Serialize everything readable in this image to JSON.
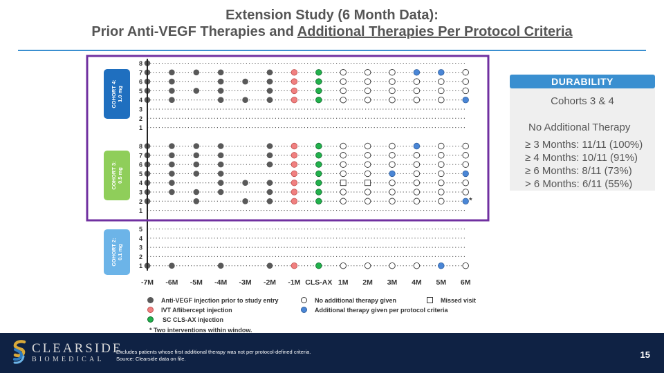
{
  "slide": {
    "title_line1": "Extension Study (6 Month Data):",
    "title_line2_prefix": "Prior Anti-VEGF Therapies and ",
    "title_line2_underlined": "Additional Therapies Per Protocol Criteria",
    "page_number": "15"
  },
  "durability": {
    "header": "DURABILITY",
    "subtitle": "Cohorts 3 & 4",
    "no_additional": "No Additional Therapy",
    "stats": [
      "≥ 3 Months: 11/11 (100%)",
      "≥ 4 Months: 10/11 (91%)",
      "≥ 6 Months: 8/11 (73%)",
      "> 6 Months: 6/11 (55%)"
    ]
  },
  "legend": {
    "prior": "Anti-VEGF injection prior to study entry",
    "ivt": "IVT Aflibercept injection",
    "scs": "SC CLS-AX injection",
    "none": "No additional therapy given",
    "additional": "Additional therapy given per protocol criteria",
    "missed": "Missed visit",
    "footnote": "* Two interventions within window."
  },
  "footer": {
    "logo_line1": "CLEARSIDE",
    "logo_line2": "BIOMEDICAL",
    "note1": "Excludes patients whose first additional therapy was not per protocol-defined criteria.",
    "note2": "Source: Clearside data on file."
  },
  "colors": {
    "prior": "#595959",
    "ivt": "#f08080",
    "scs": "#22b14c",
    "none": "#ffffff",
    "additional": "#4a86d6",
    "cohort4": "#1f6fbf",
    "cohort3": "#8fce5a",
    "cohort2": "#6cb4e8",
    "highlight_box": "#7030a0",
    "accent": "#3a8fd0"
  },
  "chart_data": {
    "type": "scatter",
    "x_labels": [
      "-7M",
      "-6M",
      "-5M",
      "-4M",
      "-3M",
      "-2M",
      "-1M",
      "CLS-AX",
      "1M",
      "2M",
      "3M",
      "4M",
      "5M",
      "6M"
    ],
    "legend_codes": {
      "P": "prior",
      "I": "ivt",
      "S": "scs",
      "N": "none",
      "A": "additional",
      "M": "missed",
      "-": "empty"
    },
    "cohorts": [
      {
        "label": "COHORT 4:",
        "dose": "1.0 mg",
        "y_labels": [
          "1",
          "2",
          "3",
          "4",
          "5",
          "6",
          "7",
          "8"
        ],
        "subjects": [
          {
            "id": "8",
            "marks": "P-------------",
            "star": false
          },
          {
            "id": "7",
            "marks": "PPPP-PISNNNAAN",
            "star": false
          },
          {
            "id": "6",
            "marks": "PP-PPPISNNNNNN",
            "star": false
          },
          {
            "id": "5",
            "marks": "PPPP-PISNNNNNN",
            "star": false
          },
          {
            "id": "4",
            "marks": "PP-PPPISNNNNNA",
            "star": false
          },
          {
            "id": "3",
            "marks": "--------------",
            "star": false
          },
          {
            "id": "2",
            "marks": "--------------",
            "star": false
          },
          {
            "id": "1",
            "marks": "--------------",
            "star": false
          }
        ]
      },
      {
        "label": "COHORT 3:",
        "dose": "0.5 mg",
        "y_labels": [
          "1",
          "2",
          "3",
          "4",
          "5",
          "6",
          "7",
          "8"
        ],
        "subjects": [
          {
            "id": "8",
            "marks": "PPPP-PISNNNANN",
            "star": false
          },
          {
            "id": "7",
            "marks": "PPPP-PISNNNNNN",
            "star": false
          },
          {
            "id": "6",
            "marks": "PPPP-PISNNNNNN",
            "star": false
          },
          {
            "id": "5",
            "marks": "PPPP--ISNNANNA",
            "star": false
          },
          {
            "id": "4",
            "marks": "PP-PPPISMMNNNN",
            "star": false
          },
          {
            "id": "3",
            "marks": "PPPP-PISNNNNNN",
            "star": false
          },
          {
            "id": "2",
            "marks": "P-P-PPISNNNNNA",
            "star": true
          },
          {
            "id": "1",
            "marks": "--------------",
            "star": false
          }
        ]
      },
      {
        "label": "COHORT 2:",
        "dose": "0.1 mg",
        "y_labels": [
          "1",
          "2",
          "3",
          "4",
          "5"
        ],
        "subjects": [
          {
            "id": "5",
            "marks": "--------------",
            "star": false
          },
          {
            "id": "4",
            "marks": "--------------",
            "star": false
          },
          {
            "id": "3",
            "marks": "--------------",
            "star": false
          },
          {
            "id": "2",
            "marks": "--------------",
            "star": false
          },
          {
            "id": "1",
            "marks": "PP-P-PISNNNNAN",
            "star": false
          }
        ]
      }
    ]
  }
}
